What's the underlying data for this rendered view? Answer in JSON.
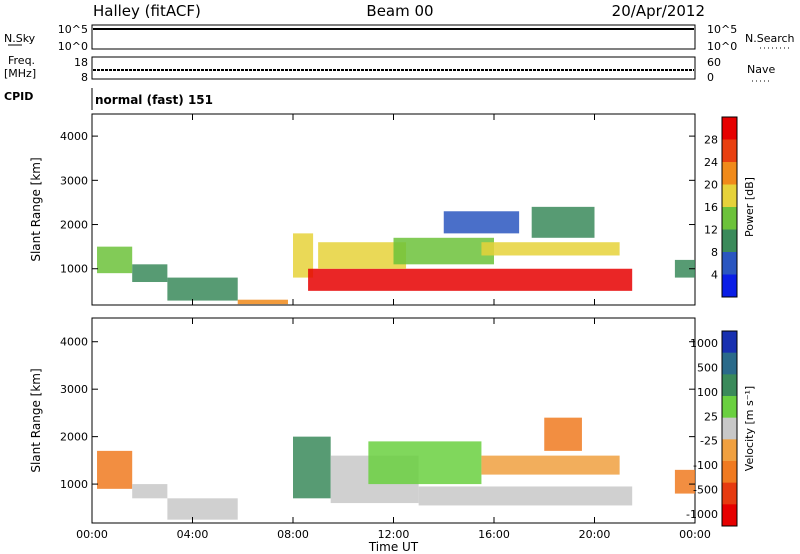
{
  "header": {
    "station": "Halley (fitACF)",
    "beam": "Beam 00",
    "date": "20/Apr/2012"
  },
  "summary": {
    "nsky_label": "N.Sky",
    "nsky_ticks": [
      "10^5",
      "10^0"
    ],
    "nsearch_label": "N.Search",
    "freq_label_1": "Freq.",
    "freq_label_2": "[MHz]",
    "freq_ticks": [
      "18",
      "8"
    ],
    "nave_label": "Nave",
    "nave_ticks": [
      "60",
      "0"
    ],
    "cpid_label": "CPID",
    "cpid_value": "normal (fast) 151"
  },
  "colors": {
    "power_scale": [
      "#0a1ee6",
      "#2a56c0",
      "#3a8a5a",
      "#6cc23a",
      "#e6d23a",
      "#f08a1a",
      "#e84010",
      "#e60000"
    ],
    "velocity_scale": [
      "#1830b0",
      "#2a6a8a",
      "#3a8a5a",
      "#6ad040",
      "#c8c8c8",
      "#f0a040",
      "#f07a20",
      "#e63a10",
      "#e60000"
    ]
  },
  "chart_data": [
    {
      "type": "heatmap",
      "title": "",
      "xlabel": "",
      "ylabel": "Slant Range [km]",
      "x_ticks": [
        "00:00",
        "04:00",
        "08:00",
        "12:00",
        "16:00",
        "20:00",
        "00:00"
      ],
      "xlim": [
        0,
        24
      ],
      "y_ticks": [
        "1000",
        "2000",
        "3000",
        "4000"
      ],
      "ylim": [
        180,
        4500
      ],
      "colorbar": {
        "label": "Power [dB]",
        "ticks": [
          "4",
          "8",
          "12",
          "16",
          "20",
          "24",
          "28"
        ],
        "range": [
          0,
          30
        ]
      },
      "blobs": [
        {
          "x0": 0.2,
          "x1": 1.6,
          "y0": 900,
          "y1": 1500,
          "v": 14
        },
        {
          "x0": 1.6,
          "x1": 3.0,
          "y0": 700,
          "y1": 1100,
          "v": 8
        },
        {
          "x0": 3.0,
          "x1": 5.8,
          "y0": 280,
          "y1": 800,
          "v": 10
        },
        {
          "x0": 5.8,
          "x1": 7.8,
          "y0": 200,
          "y1": 300,
          "v": 20
        },
        {
          "x0": 8.0,
          "x1": 8.8,
          "y0": 800,
          "y1": 1800,
          "v": 18
        },
        {
          "x0": 8.6,
          "x1": 21.5,
          "y0": 500,
          "y1": 1000,
          "v": 27
        },
        {
          "x0": 9.0,
          "x1": 12.5,
          "y0": 1000,
          "y1": 1600,
          "v": 16
        },
        {
          "x0": 12.0,
          "x1": 16.0,
          "y0": 1100,
          "y1": 1700,
          "v": 12
        },
        {
          "x0": 15.5,
          "x1": 21.0,
          "y0": 1300,
          "y1": 1600,
          "v": 18
        },
        {
          "x0": 17.5,
          "x1": 20.0,
          "y0": 1700,
          "y1": 2400,
          "v": 10
        },
        {
          "x0": 14.0,
          "x1": 17.0,
          "y0": 1800,
          "y1": 2300,
          "v": 6
        },
        {
          "x0": 23.2,
          "x1": 24.0,
          "y0": 800,
          "y1": 1200,
          "v": 10
        }
      ]
    },
    {
      "type": "heatmap",
      "title": "",
      "xlabel": "Time UT",
      "ylabel": "Slant Range [km]",
      "x_ticks": [
        "00:00",
        "04:00",
        "08:00",
        "12:00",
        "16:00",
        "20:00",
        "00:00"
      ],
      "xlim": [
        0,
        24
      ],
      "y_ticks": [
        "1000",
        "2000",
        "3000",
        "4000"
      ],
      "ylim": [
        180,
        4500
      ],
      "colorbar": {
        "label": "Velocity [m s⁻¹]",
        "ticks": [
          "1000",
          "500",
          "100",
          "25",
          "-25",
          "-100",
          "-500",
          "-1000"
        ],
        "range": [
          -1200,
          1200
        ]
      },
      "blobs": [
        {
          "x0": 0.2,
          "x1": 1.6,
          "y0": 900,
          "y1": 1700,
          "v": -500
        },
        {
          "x0": 1.6,
          "x1": 3.0,
          "y0": 700,
          "y1": 1000,
          "v": -100
        },
        {
          "x0": 3.0,
          "x1": 5.8,
          "y0": 250,
          "y1": 700,
          "v": 0
        },
        {
          "x0": 8.0,
          "x1": 9.5,
          "y0": 700,
          "y1": 2000,
          "v": 500
        },
        {
          "x0": 9.5,
          "x1": 13.0,
          "y0": 600,
          "y1": 1600,
          "v": 100
        },
        {
          "x0": 11.0,
          "x1": 15.5,
          "y0": 1000,
          "y1": 1900,
          "v": 300
        },
        {
          "x0": 13.0,
          "x1": 21.5,
          "y0": 550,
          "y1": 950,
          "v": 0
        },
        {
          "x0": 15.5,
          "x1": 21.0,
          "y0": 1200,
          "y1": 1600,
          "v": -300
        },
        {
          "x0": 18.0,
          "x1": 19.5,
          "y0": 1700,
          "y1": 2400,
          "v": -600
        },
        {
          "x0": 23.2,
          "x1": 24.0,
          "y0": 800,
          "y1": 1300,
          "v": -500
        }
      ]
    }
  ]
}
